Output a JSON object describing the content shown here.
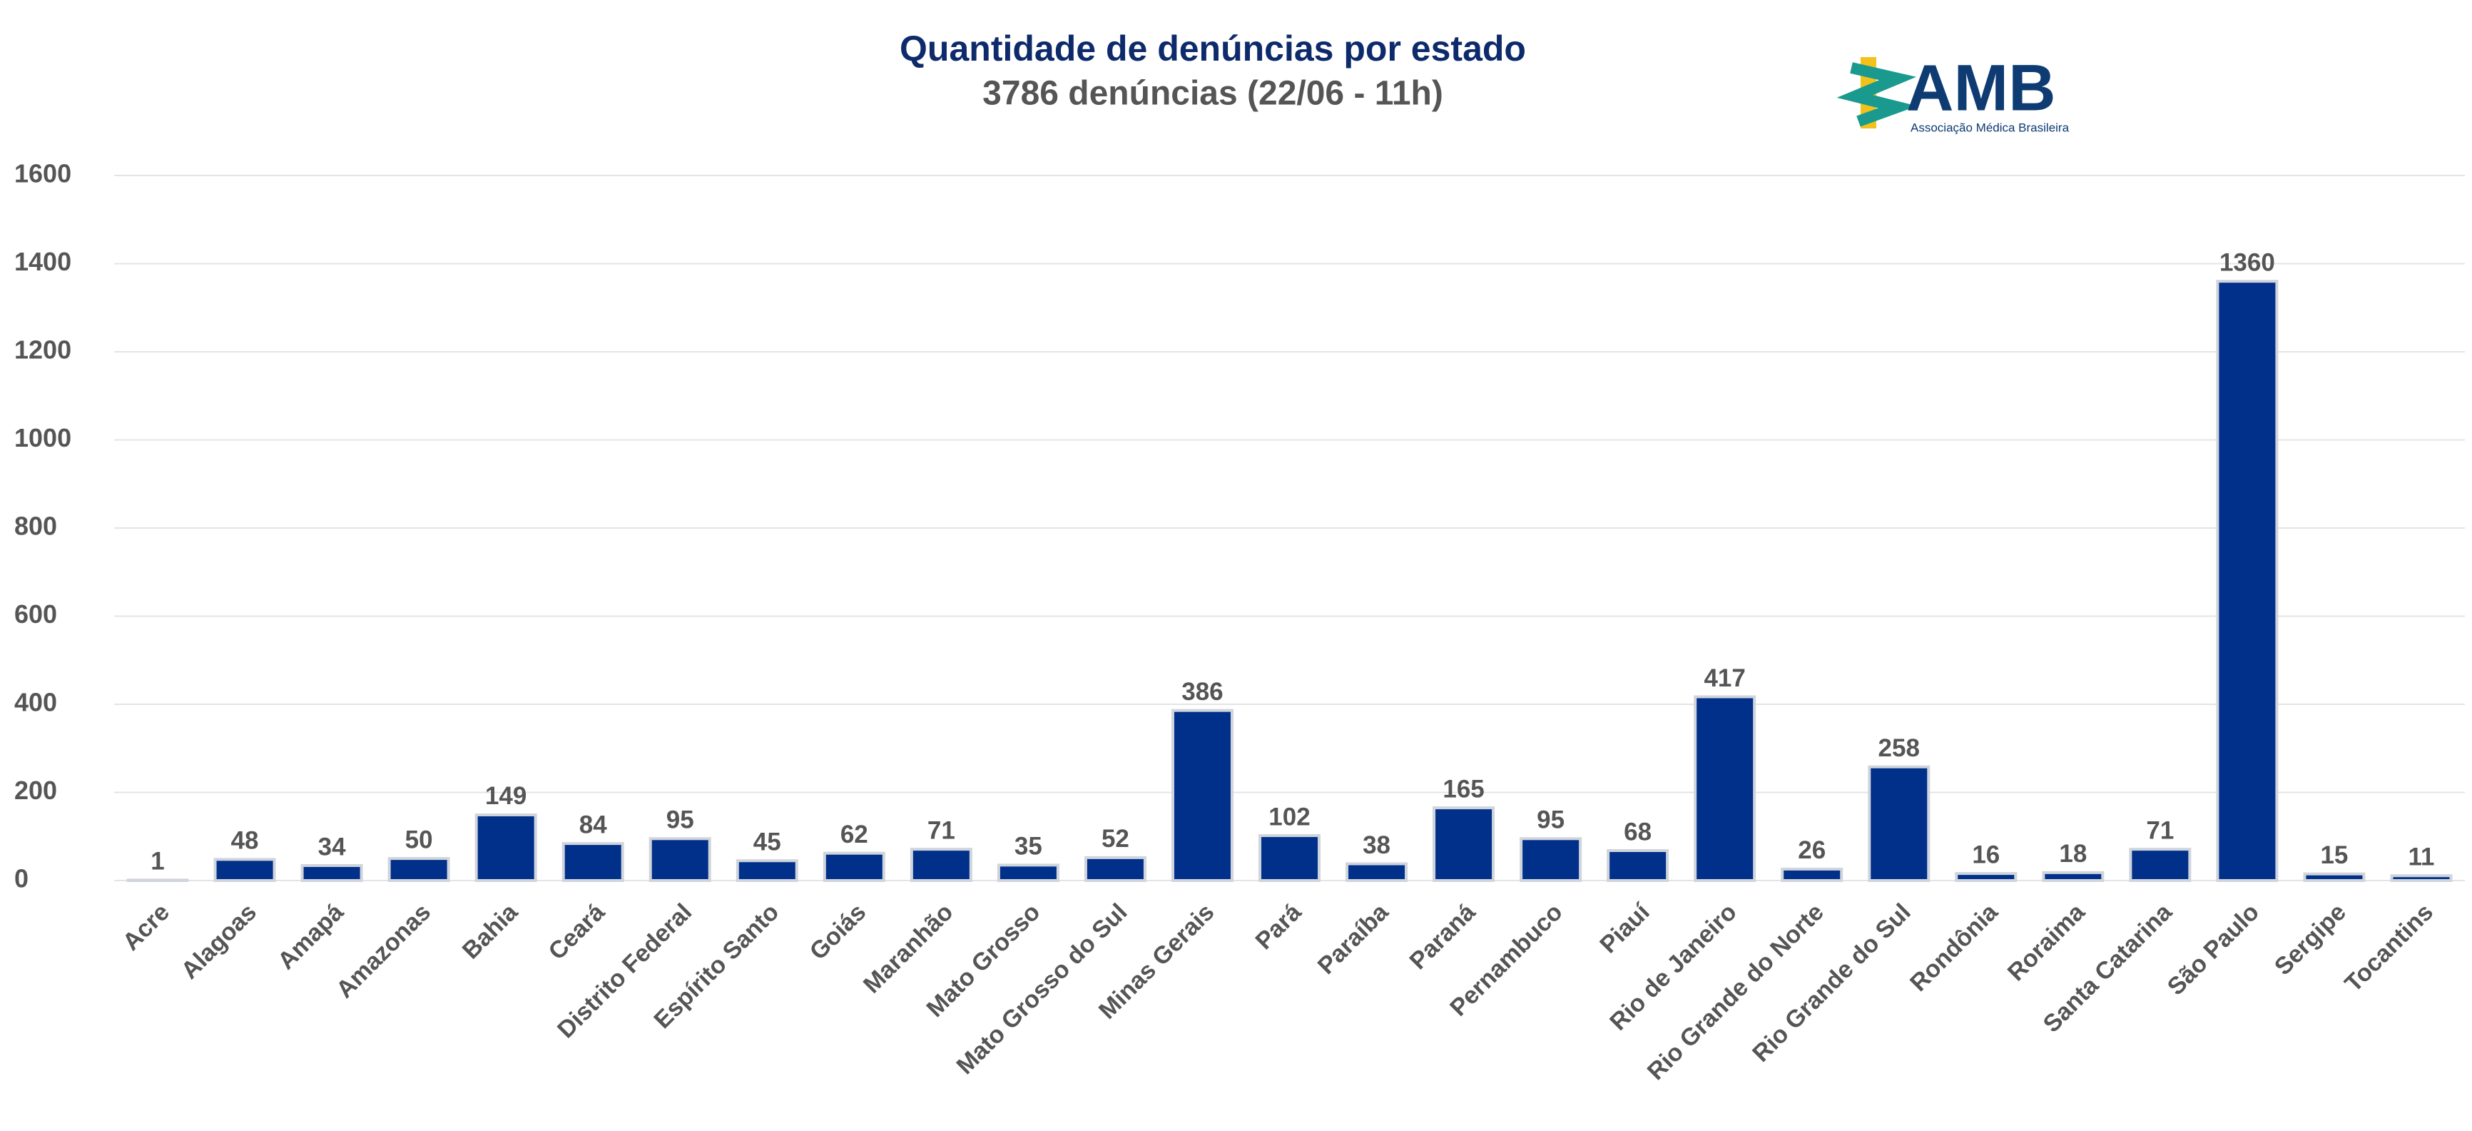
{
  "chart_data": {
    "type": "bar",
    "title": "Quantidade de denúncias por estado",
    "subtitle": "3786 denúncias (22/06 - 11h)",
    "categories": [
      "Acre",
      "Alagoas",
      "Amapá",
      "Amazonas",
      "Bahia",
      "Ceará",
      "Distrito Federal",
      "Espírito Santo",
      "Goiás",
      "Maranhão",
      "Mato Grosso",
      "Mato Grosso do Sul",
      "Minas Gerais",
      "Pará",
      "Paraíba",
      "Paraná",
      "Pernambuco",
      "Piauí",
      "Rio de Janeiro",
      "Rio Grande do Norte",
      "Rio Grande do Sul",
      "Rondônia",
      "Roraima",
      "Santa Catarina",
      "São Paulo",
      "Sergipe",
      "Tocantins"
    ],
    "values": [
      1,
      48,
      34,
      50,
      149,
      84,
      95,
      45,
      62,
      71,
      35,
      52,
      386,
      102,
      38,
      165,
      95,
      68,
      417,
      26,
      258,
      16,
      18,
      71,
      1360,
      15,
      11
    ],
    "color": "#00308a",
    "ylim": [
      0,
      1600
    ],
    "yticks": [
      0,
      200,
      400,
      600,
      800,
      1000,
      1200,
      1400,
      1600
    ],
    "grid": true
  },
  "logo": {
    "text": "AMB",
    "subtitle": "Associação Médica Brasileira"
  }
}
